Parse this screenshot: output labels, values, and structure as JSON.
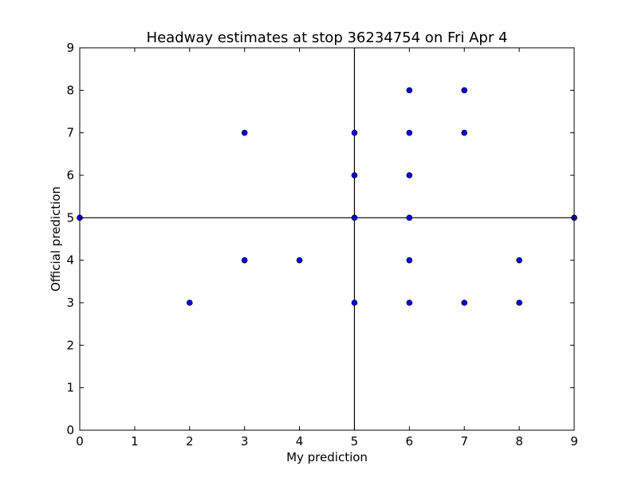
{
  "chart_data": {
    "type": "scatter",
    "title": "Headway estimates at stop 36234754 on Fri Apr 4",
    "xlabel": "My prediction",
    "ylabel": "Official prediction",
    "xlim": [
      0,
      9
    ],
    "ylim": [
      0,
      9
    ],
    "xticks": [
      "0",
      "1",
      "2",
      "3",
      "4",
      "5",
      "6",
      "7",
      "8",
      "9"
    ],
    "yticks": [
      "0",
      "1",
      "2",
      "3",
      "4",
      "5",
      "6",
      "7",
      "8",
      "9"
    ],
    "grid": false,
    "reference_lines": {
      "x": 5,
      "y": 5
    },
    "marker_color": "#0000ff",
    "points": [
      {
        "x": 0,
        "y": 5
      },
      {
        "x": 2,
        "y": 3
      },
      {
        "x": 3,
        "y": 7
      },
      {
        "x": 3,
        "y": 4
      },
      {
        "x": 4,
        "y": 4
      },
      {
        "x": 5,
        "y": 7
      },
      {
        "x": 5,
        "y": 6
      },
      {
        "x": 5,
        "y": 5
      },
      {
        "x": 5,
        "y": 3
      },
      {
        "x": 6,
        "y": 8
      },
      {
        "x": 6,
        "y": 7
      },
      {
        "x": 6,
        "y": 6
      },
      {
        "x": 6,
        "y": 5
      },
      {
        "x": 6,
        "y": 4
      },
      {
        "x": 6,
        "y": 3
      },
      {
        "x": 7,
        "y": 8
      },
      {
        "x": 7,
        "y": 7
      },
      {
        "x": 7,
        "y": 3
      },
      {
        "x": 8,
        "y": 4
      },
      {
        "x": 8,
        "y": 3
      },
      {
        "x": 9,
        "y": 5
      }
    ]
  }
}
